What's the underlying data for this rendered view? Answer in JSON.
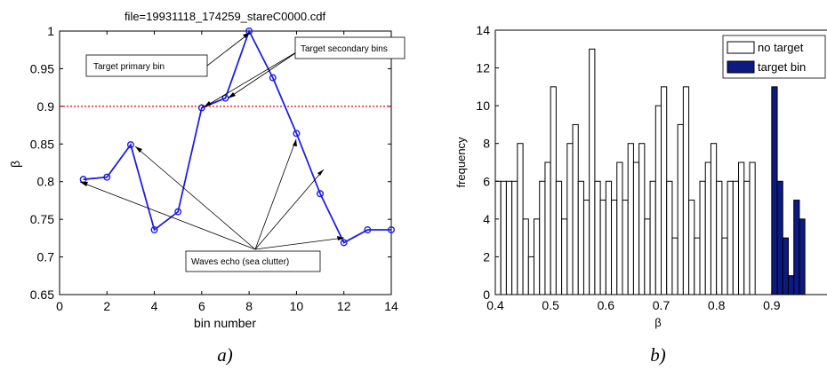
{
  "panels": {
    "a": {
      "caption": "a)",
      "title": "file=19931118_174259_stareC0000.cdf",
      "xlabel": "bin number",
      "ylabel": "β",
      "annotations": {
        "primary": "Target primary bin",
        "secondary": "Target secondary bins",
        "clutter": "Waves echo (sea clutter)"
      }
    },
    "b": {
      "caption": "b)",
      "xlabel": "β",
      "ylabel": "frequency",
      "legend": [
        "no target",
        "target bin"
      ]
    }
  },
  "colors": {
    "line": "#1f1fe6",
    "threshold": "#e00000",
    "target_bar": "#0d1a80"
  },
  "chart_data": [
    {
      "type": "line",
      "title": "file=19931118_174259_stareC0000.cdf",
      "xlabel": "bin number",
      "ylabel": "β",
      "x": [
        1,
        2,
        3,
        4,
        5,
        6,
        7,
        8,
        9,
        10,
        11,
        12,
        13,
        14
      ],
      "y": [
        0.803,
        0.806,
        0.849,
        0.736,
        0.76,
        0.898,
        0.911,
        1.0,
        0.938,
        0.864,
        0.784,
        0.719,
        0.736,
        0.736
      ],
      "xlim": [
        0,
        14
      ],
      "ylim": [
        0.65,
        1.0
      ],
      "xticks": [
        "0",
        "2",
        "4",
        "6",
        "8",
        "10",
        "12",
        "14"
      ],
      "yticks": [
        "0.65",
        "0.7",
        "0.75",
        "0.8",
        "0.85",
        "0.9",
        "0.95",
        "1"
      ],
      "threshold": 0.9,
      "marker": "circle",
      "grid": false
    },
    {
      "type": "bar",
      "xlabel": "β",
      "ylabel": "frequency",
      "xlim": [
        0.4,
        1.0
      ],
      "ylim": [
        0,
        14
      ],
      "xticks": [
        "0.4",
        "0.5",
        "0.6",
        "0.7",
        "0.8",
        "0.9"
      ],
      "yticks": [
        "0",
        "2",
        "4",
        "6",
        "8",
        "10",
        "12",
        "14"
      ],
      "bin_width": 0.01,
      "legend_position": "top-right",
      "series": [
        {
          "name": "no target",
          "bin_starts": [
            0.4,
            0.41,
            0.42,
            0.43,
            0.44,
            0.45,
            0.46,
            0.47,
            0.48,
            0.49,
            0.5,
            0.51,
            0.52,
            0.53,
            0.54,
            0.55,
            0.56,
            0.57,
            0.58,
            0.59,
            0.6,
            0.61,
            0.62,
            0.63,
            0.64,
            0.65,
            0.66,
            0.67,
            0.68,
            0.69,
            0.7,
            0.71,
            0.72,
            0.73,
            0.74,
            0.75,
            0.76,
            0.77,
            0.78,
            0.79,
            0.8,
            0.81,
            0.82,
            0.83,
            0.84,
            0.85,
            0.86
          ],
          "values": [
            6,
            6,
            6,
            6,
            8,
            4,
            2,
            4,
            6,
            7,
            11,
            6,
            4,
            8,
            9,
            6,
            5,
            13,
            6,
            5,
            6,
            5,
            7,
            5,
            8,
            7,
            8,
            4,
            6,
            10,
            11,
            6,
            3,
            9,
            11,
            5,
            3,
            6,
            7,
            8,
            6,
            3,
            6,
            6,
            7,
            6,
            7
          ]
        },
        {
          "name": "target bin",
          "bin_starts": [
            0.9,
            0.91,
            0.92,
            0.93,
            0.94,
            0.95,
            0.96
          ],
          "values": [
            11,
            6,
            3,
            1,
            5,
            4,
            0
          ]
        }
      ]
    }
  ]
}
